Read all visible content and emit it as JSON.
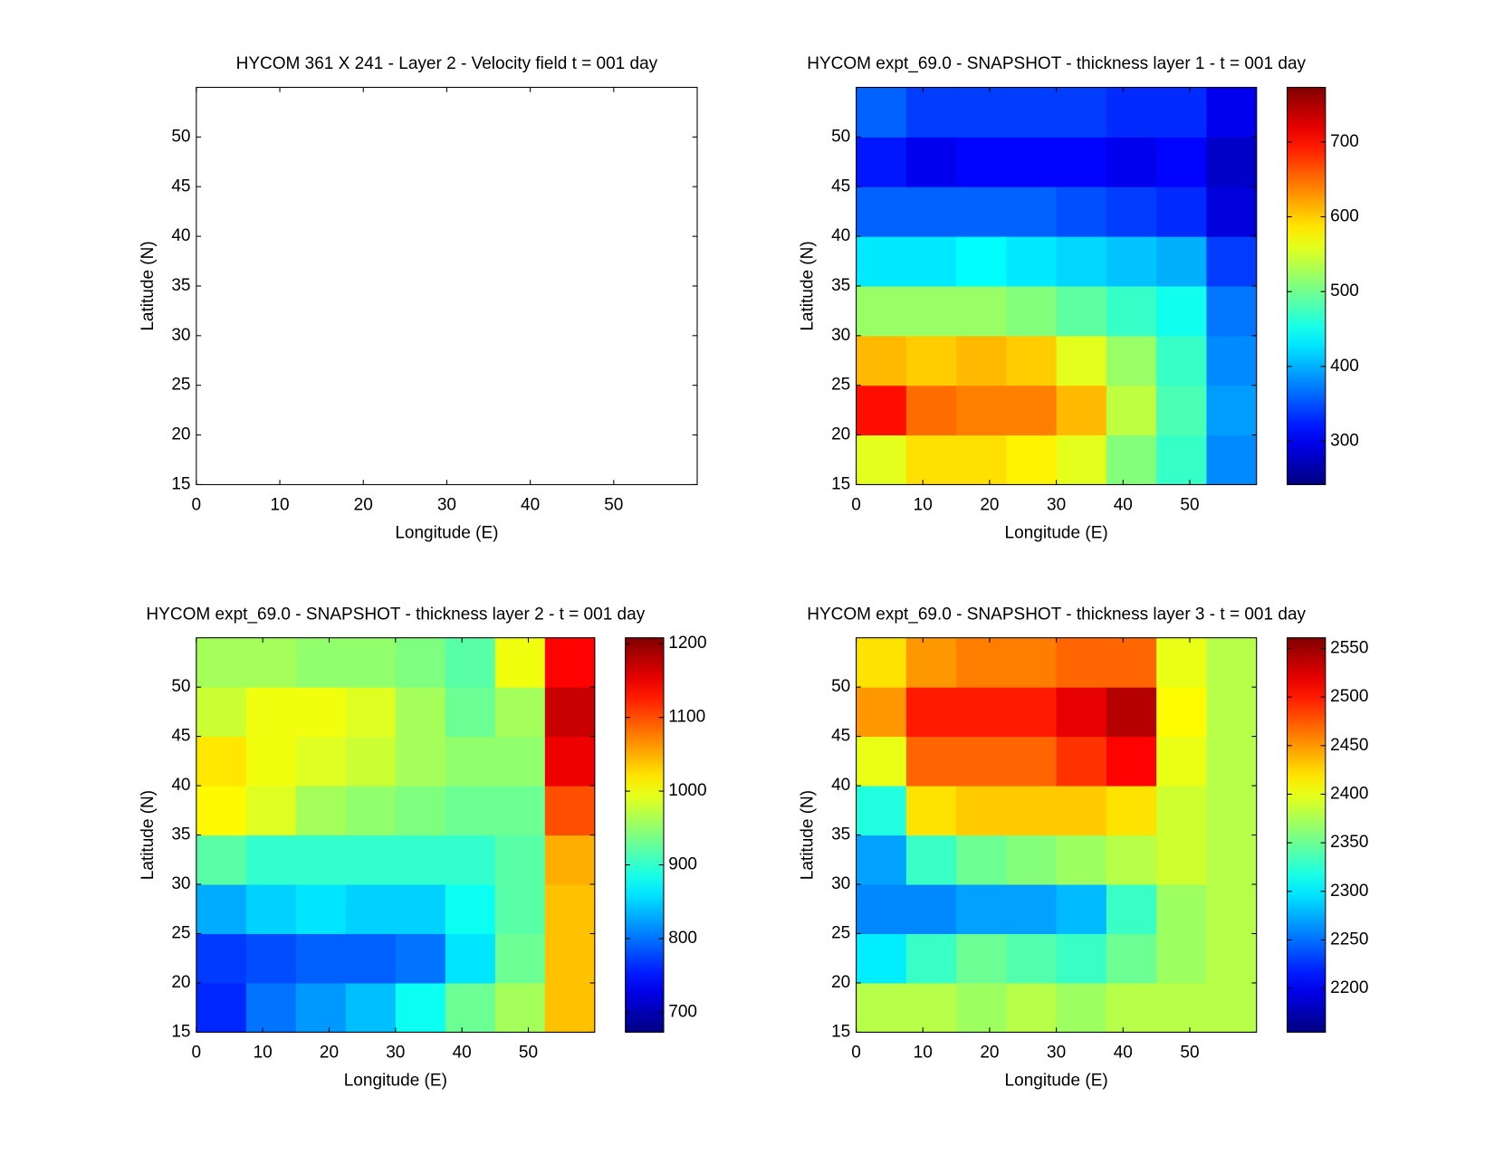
{
  "chart_data": [
    {
      "type": "quiver",
      "title": "HYCOM 361 X 241 - Layer 2 - Velocity field  t = 001 day",
      "xlabel": "Longitude (E)",
      "ylabel": "Latitude (N)",
      "xlim": [
        0,
        60
      ],
      "ylim": [
        15,
        55
      ],
      "xticks": [
        0,
        10,
        20,
        30,
        40,
        50
      ],
      "yticks": [
        15,
        20,
        25,
        30,
        35,
        40,
        45,
        50
      ]
    },
    {
      "type": "contour",
      "title": "HYCOM expt_69.0 - SNAPSHOT - thickness layer 1 - t = 001 day",
      "xlabel": "Longitude (E)",
      "ylabel": "Latitude (N)",
      "xlim": [
        0,
        60
      ],
      "ylim": [
        15,
        55
      ],
      "xticks": [
        0,
        10,
        20,
        30,
        40,
        50
      ],
      "yticks": [
        15,
        20,
        25,
        30,
        35,
        40,
        45,
        50
      ],
      "colormap": "jet",
      "clim": [
        242,
        773
      ],
      "cticks": [
        300,
        400,
        500,
        600,
        700
      ],
      "x": [
        3.75,
        11.25,
        18.75,
        26.25,
        33.75,
        41.25,
        48.75,
        56.25
      ],
      "y": [
        17.5,
        22.5,
        27.5,
        32.5,
        37.5,
        42.5,
        47.5,
        52.5
      ],
      "z": [
        [
          560,
          590,
          590,
          580,
          560,
          510,
          470,
          380
        ],
        [
          700,
          650,
          640,
          640,
          610,
          540,
          480,
          390
        ],
        [
          610,
          600,
          610,
          600,
          560,
          520,
          470,
          380
        ],
        [
          520,
          520,
          520,
          510,
          490,
          470,
          450,
          370
        ],
        [
          430,
          430,
          440,
          430,
          420,
          410,
          400,
          340
        ],
        [
          360,
          360,
          360,
          360,
          350,
          340,
          330,
          290
        ],
        [
          320,
          300,
          310,
          310,
          310,
          300,
          310,
          280
        ],
        [
          360,
          340,
          340,
          340,
          340,
          330,
          330,
          300
        ]
      ]
    },
    {
      "type": "contour",
      "title": "HYCOM expt_69.0 - SNAPSHOT - thickness layer 2 - t = 001 day",
      "xlabel": "Longitude (E)",
      "ylabel": "Latitude (N)",
      "xlim": [
        0,
        60
      ],
      "ylim": [
        15,
        55
      ],
      "xticks": [
        0,
        10,
        20,
        30,
        40,
        50
      ],
      "yticks": [
        15,
        20,
        25,
        30,
        35,
        40,
        45,
        50
      ],
      "colormap": "jet",
      "clim": [
        673,
        1208
      ],
      "cticks": [
        700,
        800,
        900,
        1000,
        1100,
        1200
      ],
      "x": [
        3.75,
        11.25,
        18.75,
        26.25,
        33.75,
        41.25,
        48.75,
        56.25
      ],
      "y": [
        17.5,
        22.5,
        27.5,
        32.5,
        37.5,
        42.5,
        47.5,
        52.5
      ],
      "z": [
        [
          760,
          800,
          820,
          840,
          880,
          930,
          960,
          1040
        ],
        [
          770,
          780,
          790,
          790,
          800,
          860,
          930,
          1040
        ],
        [
          830,
          850,
          860,
          850,
          850,
          880,
          920,
          1040
        ],
        [
          920,
          900,
          900,
          900,
          900,
          900,
          920,
          1050
        ],
        [
          1010,
          990,
          960,
          950,
          940,
          930,
          930,
          1100
        ],
        [
          1020,
          1000,
          990,
          980,
          960,
          950,
          950,
          1150
        ],
        [
          980,
          1000,
          1000,
          990,
          960,
          930,
          960,
          1170
        ],
        [
          960,
          960,
          950,
          950,
          940,
          920,
          1000,
          1140
        ]
      ]
    },
    {
      "type": "contour",
      "title": "HYCOM expt_69.0 - SNAPSHOT - thickness layer 3 - t = 001 day",
      "xlabel": "Longitude (E)",
      "ylabel": "Latitude (N)",
      "xlim": [
        0,
        60
      ],
      "ylim": [
        15,
        55
      ],
      "xticks": [
        0,
        10,
        20,
        30,
        40,
        50
      ],
      "yticks": [
        15,
        20,
        25,
        30,
        35,
        40,
        45,
        50
      ],
      "colormap": "jet",
      "clim": [
        2155,
        2561
      ],
      "cticks": [
        2200,
        2250,
        2300,
        2350,
        2400,
        2450,
        2500,
        2550
      ],
      "x": [
        3.75,
        11.25,
        18.75,
        26.25,
        33.75,
        41.25,
        48.75,
        56.25
      ],
      "y": [
        17.5,
        22.5,
        27.5,
        32.5,
        37.5,
        42.5,
        47.5,
        52.5
      ],
      "z": [
        [
          2380,
          2380,
          2370,
          2380,
          2370,
          2380,
          2380,
          2380
        ],
        [
          2300,
          2330,
          2350,
          2340,
          2330,
          2350,
          2370,
          2380
        ],
        [
          2260,
          2260,
          2270,
          2270,
          2280,
          2330,
          2370,
          2380
        ],
        [
          2270,
          2330,
          2350,
          2360,
          2370,
          2380,
          2390,
          2380
        ],
        [
          2320,
          2420,
          2430,
          2430,
          2430,
          2420,
          2390,
          2380
        ],
        [
          2400,
          2470,
          2470,
          2470,
          2490,
          2510,
          2400,
          2380
        ],
        [
          2450,
          2500,
          2500,
          2500,
          2520,
          2540,
          2410,
          2380
        ],
        [
          2420,
          2450,
          2460,
          2460,
          2470,
          2470,
          2400,
          2380
        ]
      ]
    }
  ]
}
